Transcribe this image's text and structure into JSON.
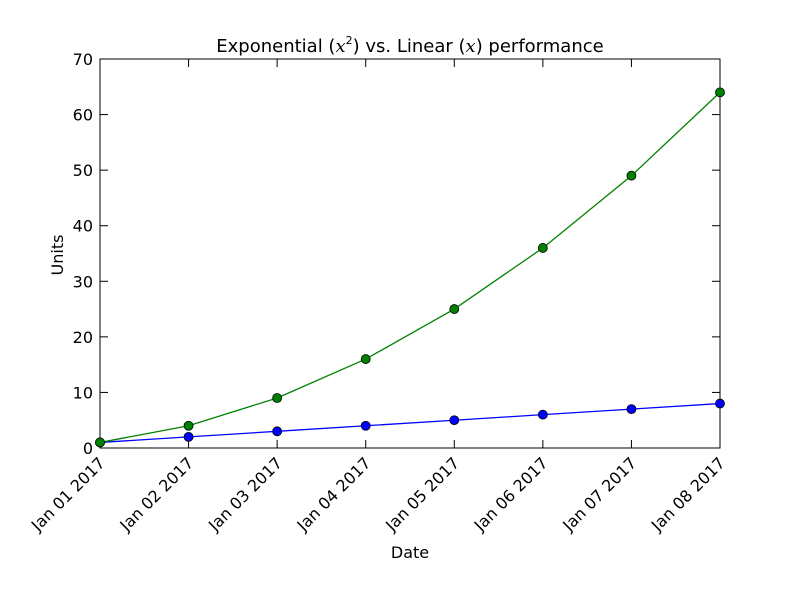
{
  "chart_data": {
    "type": "line",
    "title": "Exponential (x²) vs. Linear (x) performance",
    "title_parts": {
      "prefix": "Exponential (",
      "var1": "x",
      "sup": "2",
      "middle": ") vs. Linear (",
      "var2": "x",
      "suffix": ") performance"
    },
    "xlabel": "Date",
    "ylabel": "Units",
    "categories": [
      "Jan 01 2017",
      "Jan 02 2017",
      "Jan 03 2017",
      "Jan 04 2017",
      "Jan 05 2017",
      "Jan 06 2017",
      "Jan 07 2017",
      "Jan 08 2017"
    ],
    "y_ticks": [
      0,
      10,
      20,
      30,
      40,
      50,
      60,
      70
    ],
    "ylim": [
      0,
      70
    ],
    "grid": false,
    "series": [
      {
        "color": "#0000ff",
        "marker": "circle",
        "values": [
          1,
          2,
          3,
          4,
          5,
          6,
          7,
          8
        ]
      },
      {
        "color": "#008000",
        "marker": "circle",
        "values": [
          1,
          4,
          9,
          16,
          25,
          36,
          49,
          64
        ]
      }
    ]
  }
}
